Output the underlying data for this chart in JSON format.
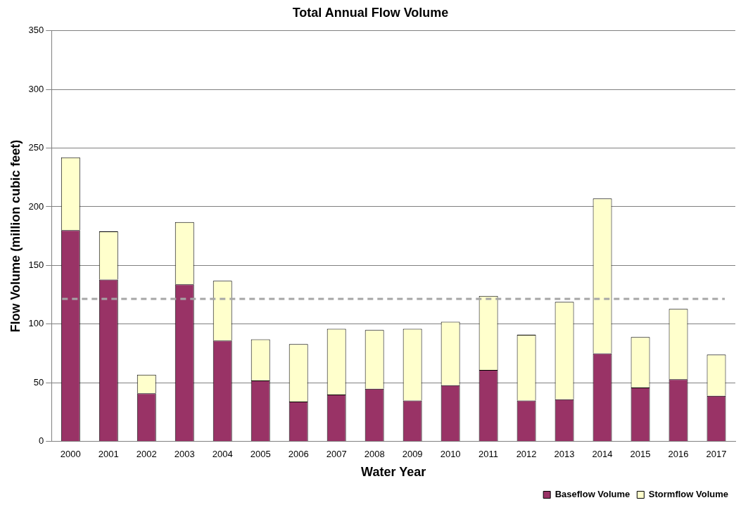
{
  "chart_data": {
    "type": "bar",
    "title": "Total Annual Flow Volume",
    "xlabel": "Water Year",
    "ylabel": "Flow Volume (million cubic feet)",
    "categories": [
      "2000",
      "2001",
      "2002",
      "2003",
      "2004",
      "2005",
      "2006",
      "2007",
      "2008",
      "2009",
      "2010",
      "2011",
      "2012",
      "2013",
      "2014",
      "2015",
      "2016",
      "2017"
    ],
    "stacked": true,
    "series": [
      {
        "name": "Baseflow Volume",
        "color": "#993366",
        "values": [
          180,
          138,
          41,
          134,
          86,
          52,
          34,
          40,
          45,
          35,
          48,
          61,
          35,
          36,
          75,
          46,
          53,
          39
        ]
      },
      {
        "name": "Stormflow Volume",
        "color": "#ffffcc",
        "values": [
          62,
          41,
          16,
          53,
          51,
          35,
          49,
          56,
          50,
          61,
          54,
          63,
          56,
          83,
          132,
          43,
          60,
          35
        ]
      }
    ],
    "ylim": [
      0,
      350
    ],
    "yticks": [
      0,
      50,
      100,
      150,
      200,
      250,
      300,
      350
    ],
    "grid": "y",
    "legend": "bottom right",
    "ref_lines": [
      {
        "axis": "y",
        "value": 121.5,
        "color": "#a6a6a6",
        "line_style": "dashed"
      }
    ]
  }
}
